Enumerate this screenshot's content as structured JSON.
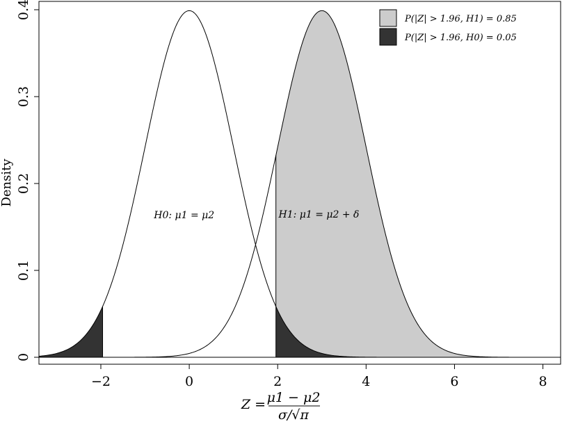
{
  "chart_data": {
    "type": "area",
    "title": "",
    "xlabel": "Z = (μ1 − μ2) / (σ/√π)",
    "xlabel_parts": {
      "lhs": "Z =",
      "numerator": "μ1 − μ2",
      "denominator": "σ/√π"
    },
    "ylabel": "Density",
    "xlim": [
      -3.4,
      8.4
    ],
    "ylim": [
      0,
      0.4
    ],
    "xticks": [
      -2,
      0,
      2,
      4,
      6,
      8
    ],
    "xtick_labels": [
      "−2",
      "0",
      "2",
      "4",
      "6",
      "8"
    ],
    "yticks": [
      0,
      0.1,
      0.2,
      0.3,
      0.4
    ],
    "ytick_labels": [
      "0",
      "0.1",
      "0.2",
      "0.3",
      "0.4"
    ],
    "grid": false,
    "critical_value": 1.96,
    "series": [
      {
        "name": "H0",
        "distribution": "normal",
        "mean": 0,
        "sd": 1
      },
      {
        "name": "H1",
        "distribution": "normal",
        "mean": 3,
        "sd": 1
      }
    ],
    "shaded_regions": [
      {
        "series": "H1",
        "from": 1.96,
        "to": 8.4,
        "color": "#cccccc"
      },
      {
        "series": "H0",
        "from": -3.4,
        "to": -1.96,
        "color": "#333333"
      },
      {
        "series": "H0",
        "from": 1.96,
        "to": 8.4,
        "color": "#333333"
      }
    ],
    "annotations": [
      {
        "text": "H0: μ1 = μ2",
        "x": -0.8,
        "y": 0.16
      },
      {
        "text": "H1: μ1 = μ2 + δ",
        "x": 2.02,
        "y": 0.161
      }
    ],
    "legend": {
      "placement": "top-right",
      "entries": [
        {
          "label": "P(|Z| > 1.96, H1) = 0.85",
          "color": "#cccccc"
        },
        {
          "label": "P(|Z| > 1.96, H0) = 0.05",
          "color": "#333333"
        }
      ]
    }
  }
}
